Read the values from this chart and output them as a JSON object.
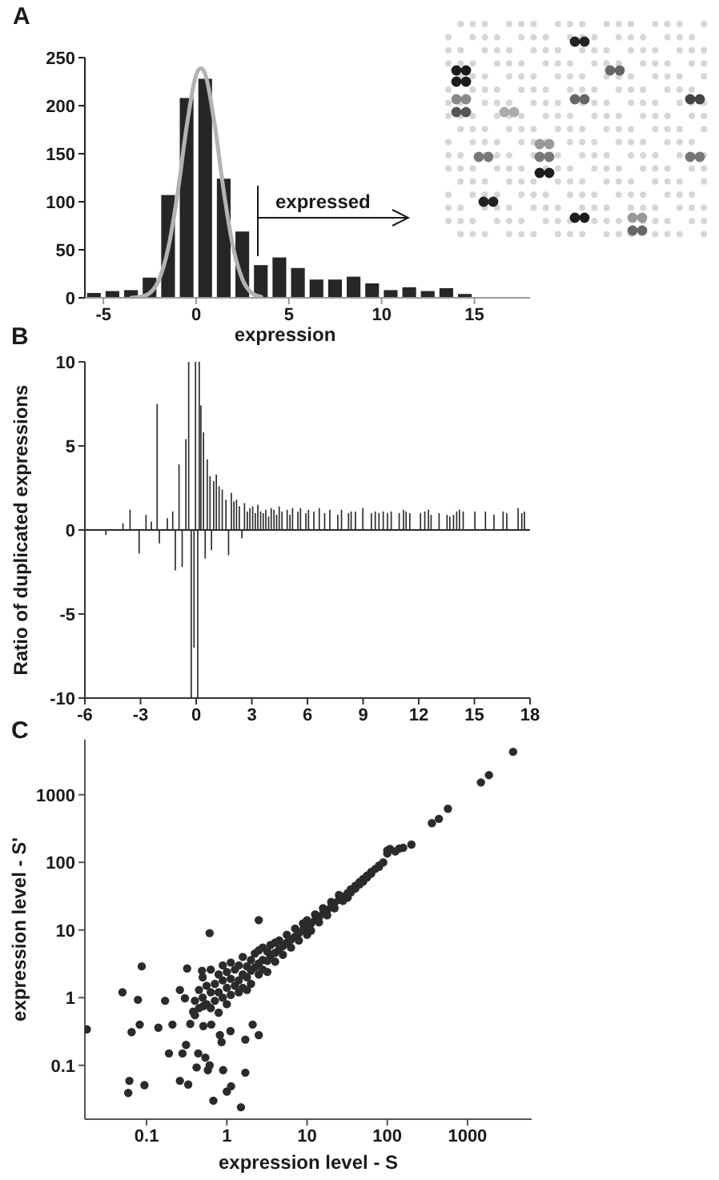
{
  "chart_data": [
    {
      "type": "histogram",
      "title": "A",
      "xlabel": "expression",
      "bins": [
        -6,
        -5,
        -4,
        -3,
        -2,
        -1,
        0,
        1,
        2,
        3,
        4,
        5,
        6,
        7,
        8,
        9,
        10,
        11,
        12,
        13,
        14,
        15
      ],
      "series": [
        {
          "values": [
            5,
            7,
            8,
            21,
            107,
            208,
            228,
            124,
            69,
            34,
            42,
            31,
            19,
            19,
            22,
            15,
            8,
            11,
            7,
            10,
            4
          ],
          "color": "#262626"
        },
        {
          "type": "line",
          "x": [
            -3.5,
            -3,
            -2.5,
            -2,
            -1.5,
            -1,
            -0.5,
            0,
            0.25,
            0.5,
            1,
            1.5,
            2,
            2.5,
            3,
            3.5
          ],
          "values": [
            0,
            1,
            5,
            19,
            52,
            109,
            180,
            232,
            239,
            232,
            180,
            109,
            52,
            19,
            5,
            1
          ],
          "color": "#b3b3b3"
        }
      ],
      "xlim": [
        -6,
        18
      ],
      "xticks": [
        -5,
        0,
        5,
        10,
        15
      ],
      "ylim": [
        0,
        250
      ],
      "yticks": [
        0,
        50,
        100,
        150,
        200,
        250
      ],
      "annotations": [
        "expressed"
      ]
    },
    {
      "type": "bar",
      "title": "B",
      "ylabel": "Ratio of duplicated expressions",
      "x": [
        -4.86,
        -3.94,
        -3.56,
        -3.07,
        -2.7,
        -2.41,
        -2.1,
        -1.98,
        -1.55,
        -1.26,
        -1.12,
        -0.92,
        -0.75,
        -0.55,
        -0.4,
        -0.26,
        -0.11,
        -0.03,
        0.09,
        0.17,
        0.26,
        0.4,
        0.49,
        0.6,
        0.75,
        0.83,
        0.95,
        1.09,
        1.24,
        1.41,
        1.61,
        1.75,
        1.9,
        2.04,
        2.18,
        2.33,
        2.47,
        2.61,
        2.76,
        2.9,
        3.05,
        3.19,
        3.33,
        3.48,
        3.62,
        3.76,
        3.91,
        4.05,
        4.2,
        4.34,
        4.48,
        4.63,
        4.91,
        5.06,
        5.2,
        5.49,
        5.63,
        5.92,
        6.06,
        6.35,
        6.64,
        6.93,
        7.21,
        7.64,
        7.84,
        8.22,
        8.36,
        8.59,
        8.99,
        9.45,
        9.66,
        9.86,
        10.09,
        10.32,
        10.52,
        10.95,
        11.18,
        11.32,
        11.52,
        12.1,
        12.33,
        12.53,
        12.67,
        13.1,
        13.53,
        13.68,
        13.88,
        14.05,
        14.2,
        14.4,
        15.03,
        15.6,
        16.06,
        16.55,
        16.75,
        17.36,
        17.56,
        17.7
      ],
      "values": [
        -0.3,
        0.4,
        1.2,
        -1.4,
        0.9,
        0.5,
        7.5,
        -0.8,
        0.7,
        1.1,
        -2.4,
        3.9,
        -2.2,
        5.4,
        10,
        -10,
        -7,
        10,
        -10,
        10,
        7.4,
        5.8,
        -1.7,
        4.2,
        3.2,
        -1.2,
        2.9,
        3.3,
        2.6,
        2.4,
        1.8,
        -1.5,
        2.2,
        1.7,
        1.8,
        1.4,
        -0.5,
        1.6,
        1.1,
        1.3,
        1.4,
        1.0,
        1.5,
        1.1,
        1.0,
        1.2,
        0.8,
        1.3,
        1.2,
        0.9,
        1.4,
        1.1,
        1.2,
        0.9,
        1.3,
        1.1,
        1.3,
        1.0,
        1.2,
        1.1,
        1.3,
        1.0,
        1.2,
        0.9,
        1.2,
        1.0,
        1.1,
        1.1,
        1.3,
        1.0,
        1.1,
        1.0,
        1.1,
        1.0,
        1.1,
        1.0,
        1.2,
        1.1,
        1.0,
        1.0,
        1.1,
        1.2,
        0.9,
        1.0,
        0.9,
        0.8,
        0.9,
        1.1,
        1.2,
        1.1,
        1.1,
        1.1,
        0.9,
        1.1,
        1.0,
        1.3,
        1.0,
        1.1
      ],
      "color": "#2b2b2b",
      "xlim": [
        -6,
        18
      ],
      "xticks": [
        -6,
        -3,
        0,
        3,
        6,
        9,
        12,
        15,
        18
      ],
      "ylim": [
        -10,
        10
      ],
      "yticks": [
        -10,
        -5,
        0,
        5,
        10
      ],
      "ref_lines": [
        {
          "axis": "y",
          "value": 0,
          "color": "#2b2b2b"
        }
      ]
    },
    {
      "type": "scatter",
      "title": "C",
      "xlabel": "expression level - S",
      "ylabel": "expression level - S'",
      "x": [
        0.018,
        0.05,
        0.087,
        0.078,
        0.065,
        0.082,
        0.061,
        0.059,
        0.094,
        0.14,
        0.17,
        0.19,
        0.21,
        0.26,
        0.26,
        0.28,
        0.31,
        0.32,
        0.33,
        0.35,
        0.3,
        0.38,
        0.44,
        0.42,
        0.49,
        0.51,
        0.54,
        0.58,
        0.61,
        0.64,
        0.61,
        0.68,
        0.82,
        0.86,
        0.9,
        1.0,
        1.13,
        1.11,
        1.5,
        1.7,
        1.7,
        2.5,
        2.1,
        2.5,
        0.51,
        0.63,
        0.4,
        0.4,
        0.45,
        0.45,
        0.5,
        0.5,
        0.56,
        0.56,
        0.63,
        0.63,
        0.71,
        0.71,
        0.79,
        0.79,
        0.79,
        0.89,
        0.89,
        0.89,
        1.0,
        1.0,
        1.0,
        1.12,
        1.12,
        1.12,
        1.26,
        1.26,
        1.41,
        1.41,
        1.41,
        1.58,
        1.58,
        1.58,
        1.78,
        1.78,
        1.78,
        2.0,
        2.0,
        2.0,
        2.24,
        2.24,
        2.5,
        2.5,
        2.5,
        2.8,
        2.8,
        2.8,
        3.2,
        3.2,
        3.2,
        3.5,
        3.5,
        4.0,
        4.0,
        4.0,
        4.5,
        4.5,
        5.0,
        5.0,
        5.6,
        5.6,
        6.3,
        6.3,
        7.1,
        7.1,
        7.9,
        7.9,
        8.9,
        8.9,
        10,
        10,
        10,
        11.2,
        11.2,
        12.6,
        12.6,
        14.1,
        14.1,
        15.8,
        15.8,
        17.8,
        17.8,
        20,
        20,
        22,
        22,
        25,
        25,
        28,
        28,
        32,
        32,
        35,
        35,
        40,
        40,
        45,
        45,
        50,
        50,
        56,
        56,
        63,
        63,
        71,
        79,
        79,
        89,
        100,
        100,
        108,
        126,
        141,
        158,
        200,
        360,
        440,
        570,
        1470,
        1850,
        3700
      ],
      "values": [
        0.34,
        1.2,
        2.9,
        0.93,
        0.31,
        0.4,
        0.059,
        0.039,
        0.051,
        0.36,
        0.9,
        0.15,
        0.4,
        1.3,
        0.059,
        0.15,
        0.2,
        2.7,
        0.052,
        0.41,
        0.98,
        0.62,
        0.15,
        0.093,
        2.5,
        0.38,
        0.13,
        0.085,
        9.0,
        0.4,
        0.1,
        0.03,
        0.28,
        0.22,
        0.085,
        0.041,
        0.049,
        0.32,
        0.024,
        0.078,
        0.24,
        0.28,
        0.4,
        14,
        0.75,
        1.2,
        0.9,
        0.55,
        1.3,
        0.7,
        1.0,
        2.0,
        0.8,
        1.5,
        2.6,
        0.7,
        1.6,
        0.9,
        1.2,
        2.2,
        0.6,
        1.8,
        1.0,
        3.0,
        1.4,
        0.8,
        2.4,
        1.1,
        1.9,
        3.3,
        1.5,
        2.6,
        1.8,
        1.2,
        3.0,
        2.2,
        1.4,
        4.0,
        2.0,
        2.9,
        1.3,
        2.5,
        3.6,
        1.6,
        2.8,
        4.5,
        3.2,
        2.2,
        5.0,
        3.6,
        2.6,
        5.5,
        3.5,
        4.8,
        2.4,
        4.2,
        6.0,
        4.6,
        3.4,
        6.5,
        5.2,
        7.0,
        5.8,
        4.3,
        6.5,
        8.5,
        7.2,
        5.5,
        8.0,
        10.5,
        9.0,
        7.0,
        10,
        12.5,
        11,
        8.5,
        14,
        12.5,
        9.8,
        14,
        17,
        15.5,
        13,
        17.5,
        21,
        19.5,
        16.5,
        22,
        26,
        25,
        21,
        28,
        33,
        31,
        27,
        35,
        30,
        40,
        36,
        45,
        41,
        51,
        47,
        57,
        52,
        64,
        60,
        72,
        68,
        80,
        90,
        86,
        100,
        135,
        150,
        158,
        145,
        160,
        164,
        183,
        380,
        440,
        620,
        1520,
        1950,
        4300
      ],
      "color": "#2b2b2b",
      "marker": "circle",
      "log": "xy",
      "xlim": [
        0.017,
        6300
      ],
      "xticks": [
        0.1,
        1,
        10,
        100,
        1000
      ],
      "ylim": [
        0.016,
        6500
      ],
      "yticks": [
        0.1,
        1,
        10,
        100,
        1000
      ]
    }
  ]
}
